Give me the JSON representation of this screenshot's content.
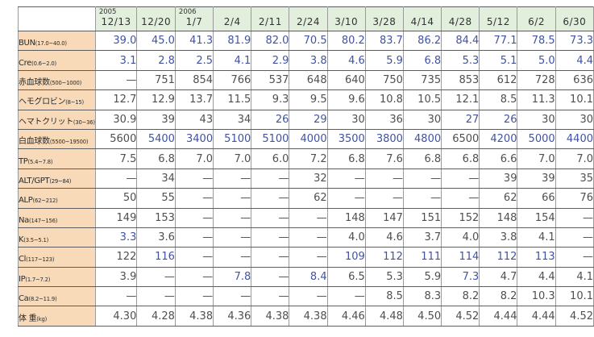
{
  "colors": {
    "header_bg": "#e1efdc",
    "label_bg": "#f8d9b8",
    "normal_value": "#4f4f4f",
    "abnormal_value": "#4152a3",
    "grid_horizontal": "#5c5c5c",
    "grid_vertical": "#9a9a9a"
  },
  "chart_data": {
    "type": "table",
    "title": "",
    "columns": [
      {
        "year": "2005",
        "date": "12/13"
      },
      {
        "year": "",
        "date": "12/20"
      },
      {
        "year": "2006",
        "date": "1/7"
      },
      {
        "year": "",
        "date": "2/4"
      },
      {
        "year": "",
        "date": "2/11"
      },
      {
        "year": "",
        "date": "2/24"
      },
      {
        "year": "",
        "date": "3/10"
      },
      {
        "year": "",
        "date": "3/28"
      },
      {
        "year": "",
        "date": "4/14"
      },
      {
        "year": "",
        "date": "4/28"
      },
      {
        "year": "",
        "date": "5/12"
      },
      {
        "year": "",
        "date": "6/2"
      },
      {
        "year": "",
        "date": "6/30"
      }
    ],
    "rows": [
      {
        "label": "BUN",
        "range": "(17.0~40.0)",
        "values": [
          "39.0",
          "45.0",
          "41.3",
          "81.9",
          "82.0",
          "70.5",
          "80.2",
          "83.7",
          "86.2",
          "84.4",
          "77.1",
          "78.5",
          "73.3"
        ],
        "blue": [
          1,
          1,
          1,
          1,
          1,
          1,
          1,
          1,
          1,
          1,
          1,
          1,
          1
        ]
      },
      {
        "label": "Cre",
        "range": "(0.6~2.0)",
        "values": [
          "3.1",
          "2.8",
          "2.5",
          "4.1",
          "2.9",
          "3.8",
          "4.6",
          "5.9",
          "6.8",
          "5.3",
          "5.1",
          "5.0",
          "4.4"
        ],
        "blue": [
          1,
          1,
          1,
          1,
          1,
          1,
          1,
          1,
          1,
          1,
          1,
          1,
          1
        ]
      },
      {
        "label": "赤血球数",
        "range": "(500~1000)",
        "values": [
          "—",
          "751",
          "854",
          "766",
          "537",
          "648",
          "640",
          "750",
          "735",
          "853",
          "612",
          "728",
          "636"
        ],
        "blue": [
          0,
          0,
          0,
          0,
          0,
          0,
          0,
          0,
          0,
          0,
          0,
          0,
          0
        ]
      },
      {
        "label": "ヘモグロビン",
        "range": "(8~15)",
        "values": [
          "12.7",
          "12.9",
          "13.7",
          "11.5",
          "9.3",
          "9.5",
          "9.6",
          "10.8",
          "10.5",
          "12.1",
          "8.5",
          "11.3",
          "10.1"
        ],
        "blue": [
          0,
          0,
          0,
          0,
          0,
          0,
          0,
          0,
          0,
          0,
          0,
          0,
          0
        ]
      },
      {
        "label": "ヘマトクリット",
        "range": "(30~36)",
        "values": [
          "30.9",
          "39",
          "43",
          "34",
          "26",
          "29",
          "30",
          "36",
          "30",
          "27",
          "26",
          "30",
          "30"
        ],
        "blue": [
          0,
          0,
          0,
          0,
          1,
          1,
          0,
          0,
          0,
          1,
          1,
          0,
          0
        ]
      },
      {
        "label": "白血球数",
        "range": "(5500~19500)",
        "values": [
          "5600",
          "5400",
          "3400",
          "5100",
          "5100",
          "4000",
          "3500",
          "3800",
          "4800",
          "6500",
          "4200",
          "5000",
          "4400"
        ],
        "blue": [
          0,
          1,
          1,
          1,
          1,
          1,
          1,
          1,
          1,
          0,
          1,
          1,
          1
        ]
      },
      {
        "label": "TP",
        "range": "(5.4~7.8)",
        "values": [
          "7.5",
          "6.8",
          "7.0",
          "7.0",
          "6.0",
          "7.2",
          "6.8",
          "7.6",
          "6.8",
          "6.8",
          "6.6",
          "7.0",
          "7.0"
        ],
        "blue": [
          0,
          0,
          0,
          0,
          0,
          0,
          0,
          0,
          0,
          0,
          0,
          0,
          0
        ]
      },
      {
        "label": "ALT/GPT",
        "range": "(29~84)",
        "values": [
          "—",
          "34",
          "—",
          "—",
          "—",
          "32",
          "—",
          "—",
          "—",
          "—",
          "39",
          "39",
          "35"
        ],
        "blue": [
          0,
          0,
          0,
          0,
          0,
          0,
          0,
          0,
          0,
          0,
          0,
          0,
          0
        ]
      },
      {
        "label": "ALP",
        "range": "(62~212)",
        "values": [
          "50",
          "55",
          "—",
          "—",
          "—",
          "62",
          "—",
          "—",
          "—",
          "—",
          "62",
          "66",
          "76"
        ],
        "blue": [
          0,
          0,
          0,
          0,
          0,
          0,
          0,
          0,
          0,
          0,
          0,
          0,
          0
        ]
      },
      {
        "label": "Na",
        "range": "(147~156)",
        "values": [
          "149",
          "153",
          "—",
          "—",
          "—",
          "—",
          "148",
          "147",
          "151",
          "152",
          "148",
          "154",
          "—"
        ],
        "blue": [
          0,
          0,
          0,
          0,
          0,
          0,
          0,
          0,
          0,
          0,
          0,
          0,
          0
        ]
      },
      {
        "label": "K",
        "range": "(3.5~5.1)",
        "values": [
          "3.3",
          "3.6",
          "—",
          "—",
          "—",
          "—",
          "4.0",
          "4.6",
          "3.7",
          "4.0",
          "3.8",
          "4.1",
          "—"
        ],
        "blue": [
          1,
          0,
          0,
          0,
          0,
          0,
          0,
          0,
          0,
          0,
          0,
          0,
          0
        ]
      },
      {
        "label": "Cl",
        "range": "(117~123)",
        "values": [
          "122",
          "116",
          "—",
          "—",
          "—",
          "—",
          "109",
          "112",
          "111",
          "114",
          "112",
          "113",
          "—"
        ],
        "blue": [
          0,
          1,
          0,
          0,
          0,
          0,
          1,
          1,
          1,
          1,
          1,
          1,
          0
        ]
      },
      {
        "label": "IP",
        "range": "(1.7~7.2)",
        "values": [
          "3.9",
          "—",
          "—",
          "7.8",
          "—",
          "8.4",
          "6.5",
          "5.3",
          "5.9",
          "7.3",
          "4.7",
          "4.4",
          "4.1"
        ],
        "blue": [
          0,
          0,
          0,
          1,
          0,
          1,
          0,
          0,
          0,
          1,
          0,
          0,
          0
        ]
      },
      {
        "label": "Ca",
        "range": "(8.2~11.9)",
        "values": [
          "—",
          "—",
          "—",
          "—",
          "—",
          "—",
          "—",
          "8.5",
          "8.3",
          "8.2",
          "8.2",
          "10.3",
          "10.1"
        ],
        "blue": [
          0,
          0,
          0,
          0,
          0,
          0,
          0,
          0,
          0,
          0,
          0,
          0,
          0
        ]
      },
      {
        "label": "体 重",
        "range": "(kg)",
        "values": [
          "4.30",
          "4.28",
          "4.38",
          "4.36",
          "4.38",
          "4.38",
          "4.46",
          "4.48",
          "4.50",
          "4.52",
          "4.44",
          "4.44",
          "4.52"
        ],
        "blue": [
          0,
          0,
          0,
          0,
          0,
          0,
          0,
          0,
          0,
          0,
          0,
          0,
          0
        ]
      }
    ]
  }
}
